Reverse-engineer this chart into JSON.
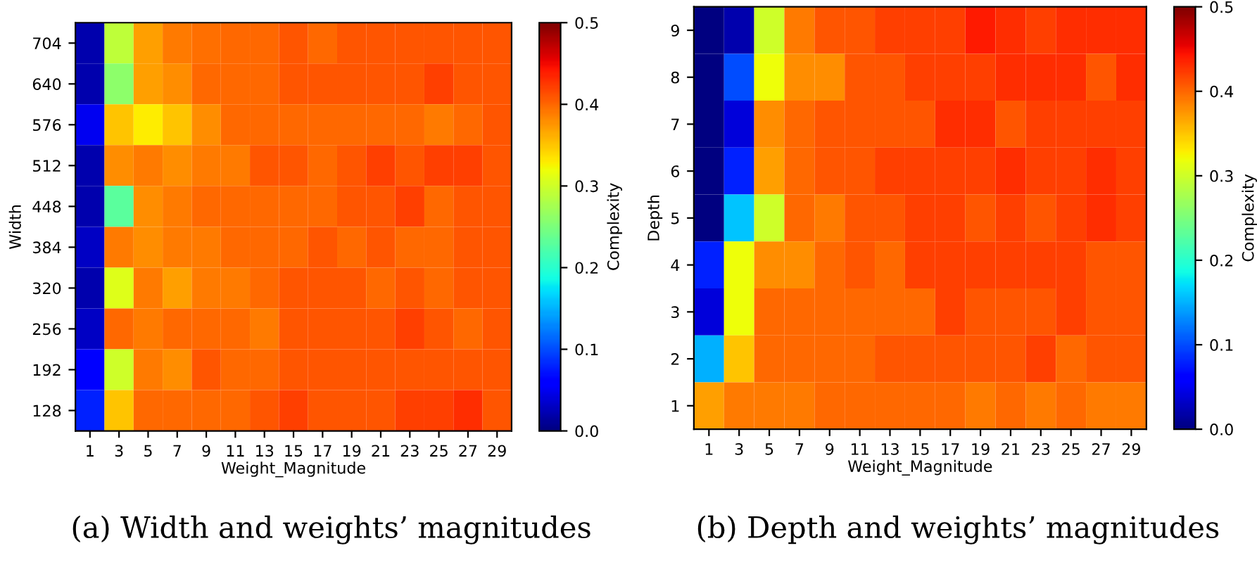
{
  "chart_data": [
    {
      "type": "heatmap",
      "xlabel": "Weight_Magnitude",
      "ylabel": "Width",
      "clabel": "Complexity",
      "annotations": [
        "(a) Width and weights’ magnitudes"
      ],
      "categories": [
        "1",
        "3",
        "5",
        "7",
        "9",
        "11",
        "13",
        "15",
        "17",
        "19",
        "21",
        "23",
        "25",
        "27",
        "29"
      ],
      "y_categories": [
        "704",
        "640",
        "576",
        "512",
        "448",
        "384",
        "320",
        "256",
        "192",
        "128"
      ],
      "cells": [
        [
          0.02,
          0.29,
          0.37,
          0.39,
          0.395,
          0.4,
          0.4,
          0.41,
          0.4,
          0.41,
          0.41,
          0.41,
          0.41,
          0.41,
          0.41
        ],
        [
          0.02,
          0.26,
          0.37,
          0.38,
          0.4,
          0.4,
          0.4,
          0.41,
          0.41,
          0.41,
          0.41,
          0.41,
          0.42,
          0.41,
          0.41
        ],
        [
          0.05,
          0.35,
          0.33,
          0.35,
          0.38,
          0.4,
          0.4,
          0.4,
          0.4,
          0.4,
          0.4,
          0.4,
          0.39,
          0.4,
          0.41
        ],
        [
          0.02,
          0.38,
          0.39,
          0.38,
          0.39,
          0.39,
          0.41,
          0.41,
          0.4,
          0.41,
          0.42,
          0.41,
          0.42,
          0.42,
          0.41
        ],
        [
          0.02,
          0.23,
          0.38,
          0.39,
          0.4,
          0.4,
          0.4,
          0.4,
          0.4,
          0.41,
          0.41,
          0.42,
          0.4,
          0.41,
          0.41
        ],
        [
          0.03,
          0.39,
          0.38,
          0.39,
          0.39,
          0.4,
          0.4,
          0.4,
          0.41,
          0.4,
          0.41,
          0.4,
          0.4,
          0.41,
          0.41
        ],
        [
          0.02,
          0.31,
          0.39,
          0.37,
          0.39,
          0.39,
          0.4,
          0.41,
          0.41,
          0.41,
          0.4,
          0.41,
          0.4,
          0.41,
          0.41
        ],
        [
          0.03,
          0.4,
          0.39,
          0.4,
          0.4,
          0.4,
          0.39,
          0.41,
          0.41,
          0.41,
          0.41,
          0.42,
          0.41,
          0.4,
          0.41
        ],
        [
          0.06,
          0.3,
          0.39,
          0.38,
          0.41,
          0.4,
          0.4,
          0.41,
          0.41,
          0.41,
          0.41,
          0.41,
          0.41,
          0.41,
          0.41
        ],
        [
          0.08,
          0.35,
          0.4,
          0.4,
          0.4,
          0.4,
          0.41,
          0.42,
          0.41,
          0.41,
          0.41,
          0.42,
          0.42,
          0.43,
          0.41
        ]
      ],
      "clim": [
        0,
        0.5
      ],
      "cticks": [
        {
          "value": 0,
          "label": "0.0"
        },
        0.1,
        0.2,
        0.3,
        0.4,
        0.5
      ]
    },
    {
      "type": "heatmap",
      "xlabel": "Weight_Magnitude",
      "ylabel": "Depth",
      "clabel": "Complexity",
      "annotations": [
        "(b) Depth and weights’ magnitudes"
      ],
      "categories": [
        "1",
        "3",
        "5",
        "7",
        "9",
        "11",
        "13",
        "15",
        "17",
        "19",
        "21",
        "23",
        "25",
        "27",
        "29"
      ],
      "y_categories": [
        "9",
        "8",
        "7",
        "6",
        "5",
        "4",
        "3",
        "2",
        "1"
      ],
      "cells": [
        [
          0.0,
          0.02,
          0.3,
          0.39,
          0.41,
          0.41,
          0.42,
          0.42,
          0.42,
          0.44,
          0.43,
          0.42,
          0.43,
          0.43,
          0.43
        ],
        [
          0.0,
          0.1,
          0.32,
          0.38,
          0.38,
          0.41,
          0.41,
          0.42,
          0.42,
          0.42,
          0.43,
          0.43,
          0.43,
          0.41,
          0.43
        ],
        [
          0.0,
          0.04,
          0.38,
          0.4,
          0.41,
          0.41,
          0.41,
          0.41,
          0.43,
          0.43,
          0.41,
          0.42,
          0.42,
          0.42,
          0.42
        ],
        [
          0.0,
          0.08,
          0.37,
          0.4,
          0.41,
          0.41,
          0.42,
          0.42,
          0.42,
          0.42,
          0.43,
          0.42,
          0.42,
          0.43,
          0.42
        ],
        [
          0.0,
          0.16,
          0.3,
          0.4,
          0.39,
          0.41,
          0.41,
          0.42,
          0.42,
          0.41,
          0.42,
          0.41,
          0.42,
          0.43,
          0.42
        ],
        [
          0.08,
          0.32,
          0.38,
          0.38,
          0.4,
          0.41,
          0.4,
          0.42,
          0.42,
          0.42,
          0.42,
          0.42,
          0.42,
          0.41,
          0.41
        ],
        [
          0.04,
          0.32,
          0.4,
          0.4,
          0.4,
          0.4,
          0.4,
          0.4,
          0.42,
          0.41,
          0.41,
          0.41,
          0.42,
          0.41,
          0.41
        ],
        [
          0.15,
          0.35,
          0.4,
          0.4,
          0.4,
          0.4,
          0.41,
          0.41,
          0.41,
          0.41,
          0.41,
          0.42,
          0.4,
          0.41,
          0.41
        ],
        [
          0.37,
          0.39,
          0.39,
          0.39,
          0.4,
          0.4,
          0.4,
          0.4,
          0.4,
          0.39,
          0.4,
          0.39,
          0.4,
          0.39,
          0.39
        ]
      ],
      "clim": [
        0,
        0.5
      ],
      "cticks": [
        {
          "value": 0,
          "label": "0.0"
        },
        0.1,
        0.2,
        0.3,
        0.4,
        0.5
      ]
    }
  ]
}
